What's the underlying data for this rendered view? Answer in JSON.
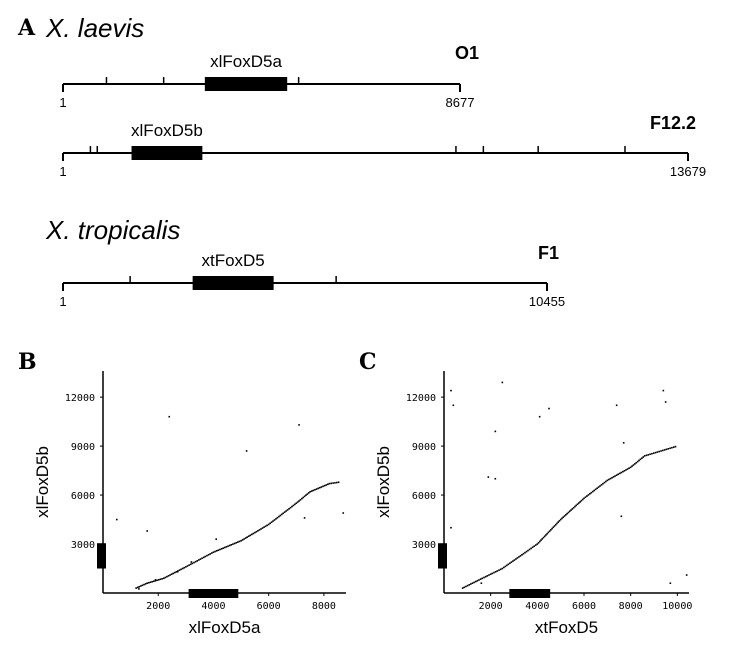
{
  "panel_a": {
    "letter": "A",
    "laevis_label": "X. laevis",
    "tropicalis_label": "X. tropicalis",
    "maps": [
      {
        "clone": "O1",
        "gene": "xlFoxD5a",
        "start": "1",
        "end": "8677",
        "length": 8677,
        "gene_range": [
          3100,
          4900
        ],
        "site_ticks": [
          950,
          2200,
          3800,
          5150
        ]
      },
      {
        "clone": "F12.2",
        "gene": "xlFoxD5b",
        "start": "1",
        "end": "13679",
        "length": 13679,
        "gene_range": [
          1500,
          3050
        ],
        "site_ticks": [
          600,
          750,
          8600,
          9200,
          10400,
          12300
        ]
      },
      {
        "clone": "F1",
        "gene": "xtFoxD5",
        "start": "1",
        "end": "10455",
        "length": 10455,
        "gene_range": [
          2800,
          4550
        ],
        "site_ticks": [
          1450,
          5900
        ]
      }
    ]
  },
  "chart_data": [
    {
      "type": "scatter",
      "panel": "B",
      "xlabel": "xlFoxD5a",
      "ylabel": "xlFoxD5b",
      "xlim": [
        0,
        8800
      ],
      "ylim": [
        0,
        13600
      ],
      "xticks": [
        2000,
        4000,
        6000,
        8000
      ],
      "yticks": [
        3000,
        6000,
        9000,
        12000
      ],
      "x_gene_range": [
        3100,
        4900
      ],
      "y_gene_range": [
        1500,
        3050
      ],
      "diagonal": [
        [
          1200,
          300
        ],
        [
          1600,
          600
        ],
        [
          2200,
          900
        ],
        [
          3000,
          1600
        ],
        [
          4000,
          2500
        ],
        [
          5000,
          3200
        ],
        [
          6000,
          4200
        ],
        [
          7000,
          5500
        ],
        [
          7500,
          6200
        ],
        [
          8200,
          6700
        ],
        [
          8600,
          6800
        ]
      ],
      "points": [
        [
          1300,
          250
        ],
        [
          1900,
          800
        ],
        [
          2700,
          1300
        ],
        [
          3200,
          1900
        ],
        [
          4100,
          3300
        ],
        [
          5200,
          8700
        ],
        [
          7100,
          10300
        ],
        [
          8700,
          4900
        ],
        [
          7300,
          4600
        ],
        [
          2400,
          10800
        ],
        [
          1600,
          3800
        ],
        [
          500,
          4500
        ]
      ]
    },
    {
      "type": "scatter",
      "panel": "C",
      "xlabel": "xtFoxD5",
      "ylabel": "xlFoxD5b",
      "xlim": [
        0,
        10500
      ],
      "ylim": [
        0,
        13600
      ],
      "xticks": [
        2000,
        4000,
        6000,
        8000,
        10000
      ],
      "yticks": [
        3000,
        6000,
        9000,
        12000
      ],
      "x_gene_range": [
        2800,
        4550
      ],
      "y_gene_range": [
        1500,
        3050
      ],
      "diagonal": [
        [
          800,
          300
        ],
        [
          1500,
          800
        ],
        [
          2500,
          1500
        ],
        [
          3600,
          2600
        ],
        [
          4000,
          3000
        ],
        [
          5000,
          4500
        ],
        [
          6000,
          5800
        ],
        [
          7000,
          6900
        ],
        [
          8000,
          7700
        ],
        [
          8600,
          8400
        ],
        [
          9300,
          8700
        ],
        [
          10000,
          9000
        ]
      ],
      "points": [
        [
          1600,
          600
        ],
        [
          2200,
          7000
        ],
        [
          2500,
          12900
        ],
        [
          4100,
          10800
        ],
        [
          4500,
          11300
        ],
        [
          7600,
          4700
        ],
        [
          7400,
          11500
        ],
        [
          7700,
          9200
        ],
        [
          9400,
          12400
        ],
        [
          9500,
          11700
        ],
        [
          10400,
          1100
        ],
        [
          9700,
          600
        ],
        [
          300,
          12400
        ],
        [
          400,
          11500
        ],
        [
          1900,
          7100
        ],
        [
          2200,
          9900
        ],
        [
          300,
          4000
        ]
      ]
    }
  ]
}
